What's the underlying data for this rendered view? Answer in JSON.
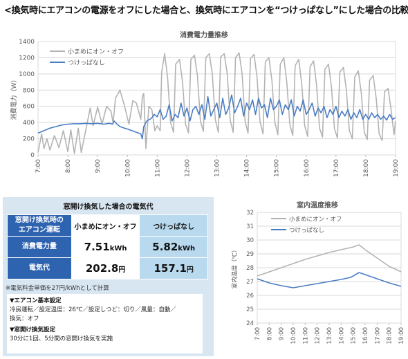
{
  "page_title": "<換気時にエアコンの電源をオフにした場合と、換気時にエアコンを“つけっぱなし”にした場合の比較>",
  "cost_panel": {
    "title": "窓開け換気した場合の電気代",
    "header_label": "窓開け換気時の\nエアコン運転",
    "col1": "小まめにオン・オフ",
    "col2": "つけっぱなし",
    "rows": [
      {
        "label": "消費電力量",
        "v1": "7.51",
        "u1": "kWh",
        "v2": "5.82",
        "u2": "kWh"
      },
      {
        "label": "電気代",
        "v1": "202.8",
        "u1": "円",
        "v2": "157.1",
        "u2": "円"
      }
    ],
    "note": "※電気料金単価を27円/kWhとして計算",
    "settings": [
      {
        "heading": "▼エアコン基本設定",
        "lines": [
          "冷房運転／設定温度：26℃／設定しつど：切り／風量：自動／",
          "換気：オフ"
        ]
      },
      {
        "heading": "▼窓開け換気設定",
        "lines": [
          "30分に1回、5分間の窓開け換気を実施"
        ]
      }
    ]
  },
  "chart_data": [
    {
      "type": "line",
      "title": "消費電力量推移",
      "ylabel": "消費電力（W）",
      "ylim": [
        0,
        1400
      ],
      "yticks": [
        "0",
        "200",
        "400",
        "600",
        "800",
        "1000",
        "1200",
        "1400"
      ],
      "xlim": [
        7,
        19
      ],
      "xticks": [
        "7:00",
        "8:00",
        "9:00",
        "10:00",
        "11:00",
        "12:00",
        "13:00",
        "14:00",
        "15:00",
        "16:00",
        "17:00",
        "18:00",
        "19:00"
      ],
      "grid": true,
      "legend": "top-left",
      "series": [
        {
          "name": "小まめにオン・オフ",
          "color": "#b3b3b3",
          "points": [
            [
              7.0,
              30
            ],
            [
              7.12,
              260
            ],
            [
              7.2,
              80
            ],
            [
              7.3,
              200
            ],
            [
              7.4,
              60
            ],
            [
              7.55,
              240
            ],
            [
              7.7,
              90
            ],
            [
              7.85,
              300
            ],
            [
              8.0,
              40
            ],
            [
              8.1,
              310
            ],
            [
              8.22,
              20
            ],
            [
              8.35,
              330
            ],
            [
              8.45,
              30
            ],
            [
              8.6,
              300
            ],
            [
              8.75,
              580
            ],
            [
              8.85,
              360
            ],
            [
              9.0,
              590
            ],
            [
              9.15,
              380
            ],
            [
              9.3,
              600
            ],
            [
              9.45,
              540
            ],
            [
              9.52,
              390
            ],
            [
              9.6,
              700
            ],
            [
              9.75,
              800
            ],
            [
              9.9,
              610
            ],
            [
              10.05,
              380
            ],
            [
              10.18,
              670
            ],
            [
              10.3,
              640
            ],
            [
              10.45,
              440
            ],
            [
              10.5,
              720
            ],
            [
              10.55,
              760
            ],
            [
              10.62,
              80
            ],
            [
              10.72,
              600
            ],
            [
              10.82,
              560
            ],
            [
              10.92,
              300
            ],
            [
              11.0,
              360
            ],
            [
              11.1,
              300
            ],
            [
              11.15,
              1020
            ],
            [
              11.25,
              1250
            ],
            [
              11.35,
              950
            ],
            [
              11.45,
              400
            ],
            [
              11.55,
              280
            ],
            [
              11.62,
              1120
            ],
            [
              11.75,
              1180
            ],
            [
              11.85,
              900
            ],
            [
              11.95,
              380
            ],
            [
              12.05,
              270
            ],
            [
              12.13,
              1180
            ],
            [
              12.25,
              1230
            ],
            [
              12.35,
              980
            ],
            [
              12.45,
              420
            ],
            [
              12.55,
              290
            ],
            [
              12.63,
              1200
            ],
            [
              12.75,
              1250
            ],
            [
              12.85,
              1000
            ],
            [
              12.95,
              440
            ],
            [
              13.05,
              280
            ],
            [
              13.13,
              1210
            ],
            [
              13.25,
              1250
            ],
            [
              13.35,
              1000
            ],
            [
              13.45,
              430
            ],
            [
              13.55,
              280
            ],
            [
              13.63,
              1200
            ],
            [
              13.75,
              1260
            ],
            [
              13.85,
              1000
            ],
            [
              13.95,
              420
            ],
            [
              14.05,
              270
            ],
            [
              14.13,
              1190
            ],
            [
              14.25,
              1240
            ],
            [
              14.35,
              960
            ],
            [
              14.45,
              410
            ],
            [
              14.55,
              260
            ],
            [
              14.63,
              1150
            ],
            [
              14.75,
              1200
            ],
            [
              14.85,
              920
            ],
            [
              14.95,
              400
            ],
            [
              15.05,
              250
            ],
            [
              15.13,
              1120
            ],
            [
              15.25,
              1200
            ],
            [
              15.35,
              900
            ],
            [
              15.45,
              380
            ],
            [
              15.55,
              240
            ],
            [
              15.63,
              1100
            ],
            [
              15.75,
              1180
            ],
            [
              15.85,
              880
            ],
            [
              15.95,
              360
            ],
            [
              16.05,
              230
            ],
            [
              16.13,
              1090
            ],
            [
              16.25,
              1160
            ],
            [
              16.35,
              860
            ],
            [
              16.45,
              330
            ],
            [
              16.55,
              220
            ],
            [
              16.63,
              1060
            ],
            [
              16.75,
              1120
            ],
            [
              16.85,
              830
            ],
            [
              16.95,
              320
            ],
            [
              17.05,
              210
            ],
            [
              17.13,
              1020
            ],
            [
              17.25,
              1080
            ],
            [
              17.35,
              800
            ],
            [
              17.45,
              300
            ],
            [
              17.55,
              200
            ],
            [
              17.63,
              960
            ],
            [
              17.75,
              1040
            ],
            [
              17.85,
              760
            ],
            [
              17.95,
              280
            ],
            [
              18.05,
              190
            ],
            [
              18.13,
              920
            ],
            [
              18.25,
              980
            ],
            [
              18.35,
              700
            ],
            [
              18.45,
              260
            ],
            [
              18.55,
              180
            ],
            [
              18.63,
              780
            ],
            [
              18.75,
              820
            ],
            [
              18.85,
              560
            ],
            [
              18.95,
              250
            ],
            [
              19.0,
              420
            ]
          ]
        },
        {
          "name": "つけっぱなし",
          "color": "#4a7cc4",
          "points": [
            [
              7.0,
              270
            ],
            [
              7.2,
              300
            ],
            [
              7.4,
              330
            ],
            [
              7.6,
              350
            ],
            [
              7.8,
              370
            ],
            [
              8.0,
              380
            ],
            [
              8.2,
              385
            ],
            [
              8.4,
              385
            ],
            [
              8.6,
              390
            ],
            [
              8.8,
              385
            ],
            [
              9.0,
              390
            ],
            [
              9.2,
              380
            ],
            [
              9.4,
              390
            ],
            [
              9.5,
              380
            ],
            [
              9.55,
              420
            ],
            [
              9.65,
              380
            ],
            [
              9.75,
              350
            ],
            [
              9.9,
              330
            ],
            [
              10.0,
              320
            ],
            [
              10.15,
              300
            ],
            [
              10.3,
              280
            ],
            [
              10.45,
              260
            ],
            [
              10.5,
              200
            ],
            [
              10.55,
              350
            ],
            [
              10.65,
              420
            ],
            [
              10.8,
              450
            ],
            [
              10.9,
              500
            ],
            [
              11.0,
              470
            ],
            [
              11.1,
              560
            ],
            [
              11.2,
              440
            ],
            [
              11.3,
              480
            ],
            [
              11.4,
              620
            ],
            [
              11.5,
              420
            ],
            [
              11.6,
              500
            ],
            [
              11.7,
              460
            ],
            [
              11.8,
              640
            ],
            [
              11.9,
              480
            ],
            [
              12.0,
              580
            ],
            [
              12.1,
              420
            ],
            [
              12.2,
              560
            ],
            [
              12.3,
              600
            ],
            [
              12.4,
              500
            ],
            [
              12.5,
              620
            ],
            [
              12.6,
              440
            ],
            [
              12.7,
              720
            ],
            [
              12.8,
              480
            ],
            [
              12.9,
              560
            ],
            [
              13.0,
              640
            ],
            [
              13.1,
              460
            ],
            [
              13.2,
              700
            ],
            [
              13.3,
              500
            ],
            [
              13.4,
              580
            ],
            [
              13.5,
              740
            ],
            [
              13.6,
              520
            ],
            [
              13.7,
              600
            ],
            [
              13.8,
              700
            ],
            [
              13.9,
              480
            ],
            [
              14.0,
              640
            ],
            [
              14.1,
              560
            ],
            [
              14.2,
              680
            ],
            [
              14.3,
              500
            ],
            [
              14.4,
              700
            ],
            [
              14.5,
              580
            ],
            [
              14.6,
              620
            ],
            [
              14.7,
              460
            ],
            [
              14.8,
              700
            ],
            [
              14.9,
              560
            ],
            [
              15.0,
              600
            ],
            [
              15.1,
              680
            ],
            [
              15.2,
              500
            ],
            [
              15.3,
              620
            ],
            [
              15.4,
              560
            ],
            [
              15.5,
              680
            ],
            [
              15.6,
              480
            ],
            [
              15.7,
              600
            ],
            [
              15.8,
              540
            ],
            [
              15.9,
              680
            ],
            [
              16.0,
              500
            ],
            [
              16.1,
              560
            ],
            [
              16.2,
              640
            ],
            [
              16.3,
              480
            ],
            [
              16.4,
              580
            ],
            [
              16.5,
              520
            ],
            [
              16.6,
              600
            ],
            [
              16.7,
              460
            ],
            [
              16.8,
              560
            ],
            [
              16.9,
              500
            ],
            [
              17.0,
              600
            ],
            [
              17.1,
              460
            ],
            [
              17.2,
              540
            ],
            [
              17.3,
              480
            ],
            [
              17.4,
              560
            ],
            [
              17.5,
              440
            ],
            [
              17.6,
              520
            ],
            [
              17.7,
              460
            ],
            [
              17.8,
              560
            ],
            [
              17.9,
              440
            ],
            [
              18.0,
              500
            ],
            [
              18.1,
              440
            ],
            [
              18.2,
              520
            ],
            [
              18.3,
              460
            ],
            [
              18.4,
              500
            ],
            [
              18.5,
              440
            ],
            [
              18.6,
              480
            ],
            [
              18.7,
              430
            ],
            [
              18.8,
              500
            ],
            [
              18.9,
              440
            ],
            [
              19.0,
              460
            ]
          ]
        }
      ]
    },
    {
      "type": "line",
      "title": "室内温度推移",
      "ylabel": "室内温度（℃）",
      "ylim": [
        24,
        32
      ],
      "yticks": [
        "24",
        "25",
        "26",
        "27",
        "28",
        "29",
        "30",
        "31",
        "32"
      ],
      "xlim": [
        7,
        19
      ],
      "xticks": [
        "7:00",
        "8:00",
        "9:00",
        "10:00",
        "11:00",
        "12:00",
        "13:00",
        "14:00",
        "15:00",
        "16:00",
        "17:00",
        "18:00",
        "19:00"
      ],
      "grid": true,
      "legend": "top-left",
      "series": [
        {
          "name": "小まめにオン・オフ",
          "color": "#b3b3b3",
          "points": [
            [
              7.0,
              27.4
            ],
            [
              8.0,
              27.7
            ],
            [
              9.0,
              28.0
            ],
            [
              10.0,
              28.3
            ],
            [
              11.0,
              28.6
            ],
            [
              12.0,
              28.85
            ],
            [
              13.0,
              29.1
            ],
            [
              14.0,
              29.3
            ],
            [
              15.0,
              29.5
            ],
            [
              15.5,
              29.65
            ],
            [
              16.0,
              29.3
            ],
            [
              17.0,
              28.7
            ],
            [
              18.0,
              28.1
            ],
            [
              19.0,
              27.7
            ]
          ]
        },
        {
          "name": "つけっぱなし",
          "color": "#4a7cc4",
          "points": [
            [
              7.0,
              27.2
            ],
            [
              8.0,
              26.9
            ],
            [
              9.0,
              26.7
            ],
            [
              10.0,
              26.55
            ],
            [
              11.0,
              26.7
            ],
            [
              12.0,
              26.85
            ],
            [
              13.0,
              27.0
            ],
            [
              14.0,
              27.15
            ],
            [
              14.8,
              27.3
            ],
            [
              15.5,
              27.65
            ],
            [
              16.0,
              27.5
            ],
            [
              17.0,
              27.2
            ],
            [
              18.0,
              26.9
            ],
            [
              19.0,
              26.65
            ]
          ]
        }
      ]
    }
  ]
}
